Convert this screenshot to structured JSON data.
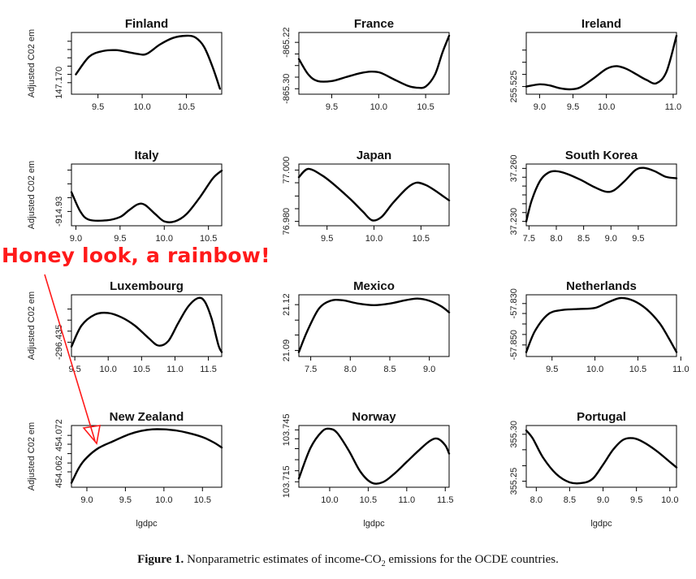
{
  "chart_data": [
    {
      "type": "line",
      "title": "Finland",
      "ylabel": "Adjusted C02 em",
      "xlabel": "",
      "xlim": [
        9.2,
        10.9
      ],
      "ylim": [
        0,
        1
      ],
      "x_ticks": [
        "9.5",
        "10.0",
        "10.5"
      ],
      "x_tick_values": [
        9.5,
        10.0,
        10.5
      ],
      "y_ticks": [
        "147.170"
      ],
      "y_tick_values": [
        0.15
      ],
      "y_minor_ticks": [
        0.3,
        0.45,
        0.6,
        0.75,
        0.9
      ],
      "x": [
        9.25,
        9.4,
        9.55,
        9.7,
        9.85,
        9.95,
        10.05,
        10.2,
        10.35,
        10.5,
        10.6,
        10.7,
        10.8,
        10.88
      ],
      "y": [
        0.3,
        0.62,
        0.72,
        0.74,
        0.7,
        0.67,
        0.67,
        0.84,
        0.96,
        1.0,
        0.97,
        0.8,
        0.42,
        0.04
      ]
    },
    {
      "type": "line",
      "title": "France",
      "ylabel": "",
      "xlabel": "",
      "xlim": [
        9.15,
        10.75
      ],
      "ylim": [
        0,
        1
      ],
      "x_ticks": [
        "9.5",
        "10.0",
        "10.5"
      ],
      "x_tick_values": [
        9.5,
        10.0,
        10.5
      ],
      "y_ticks": [
        "-865.30",
        "-865.22"
      ],
      "y_tick_values": [
        0.04,
        0.88
      ],
      "y_minor_ticks": [
        0.25,
        0.46,
        0.67
      ],
      "x": [
        9.15,
        9.25,
        9.35,
        9.5,
        9.65,
        9.8,
        9.92,
        10.02,
        10.15,
        10.3,
        10.4,
        10.5,
        10.6,
        10.68,
        10.75
      ],
      "y": [
        0.58,
        0.3,
        0.18,
        0.18,
        0.25,
        0.32,
        0.35,
        0.33,
        0.22,
        0.1,
        0.06,
        0.08,
        0.3,
        0.7,
        1.0
      ]
    },
    {
      "type": "line",
      "title": "Ireland",
      "ylabel": "",
      "xlabel": "",
      "xlim": [
        8.8,
        11.05
      ],
      "ylim": [
        0,
        1
      ],
      "x_ticks": [
        "9.0",
        "9.5",
        "10.0",
        "11.0"
      ],
      "x_tick_values": [
        9.0,
        9.5,
        10.0,
        11.0
      ],
      "y_ticks": [
        "255.525"
      ],
      "y_tick_values": [
        0.08
      ],
      "y_minor_ticks": [
        0.3,
        0.52,
        0.74
      ],
      "x": [
        8.8,
        9.0,
        9.15,
        9.3,
        9.45,
        9.6,
        9.8,
        10.0,
        10.15,
        10.3,
        10.45,
        10.6,
        10.75,
        10.9,
        11.05
      ],
      "y": [
        0.08,
        0.12,
        0.1,
        0.05,
        0.03,
        0.06,
        0.22,
        0.4,
        0.45,
        0.4,
        0.3,
        0.2,
        0.14,
        0.35,
        1.0
      ]
    },
    {
      "type": "line",
      "title": "Italy",
      "ylabel": "Adjusted C02 em",
      "xlabel": "",
      "xlim": [
        8.95,
        10.65
      ],
      "ylim": [
        0,
        1
      ],
      "x_ticks": [
        "9.0",
        "9.5",
        "10.0",
        "10.5"
      ],
      "x_tick_values": [
        9.0,
        9.5,
        10.0,
        10.5
      ],
      "y_ticks": [
        "-914.93"
      ],
      "y_tick_values": [
        0.2
      ],
      "y_minor_ticks": [
        0.45,
        0.7,
        0.95
      ],
      "x": [
        8.95,
        9.05,
        9.15,
        9.35,
        9.5,
        9.6,
        9.7,
        9.78,
        9.9,
        10.0,
        10.12,
        10.25,
        10.4,
        10.55,
        10.65
      ],
      "y": [
        0.55,
        0.2,
        0.05,
        0.04,
        0.1,
        0.22,
        0.33,
        0.32,
        0.15,
        0.02,
        0.02,
        0.15,
        0.45,
        0.8,
        0.94
      ]
    },
    {
      "type": "line",
      "title": "Japan",
      "ylabel": "",
      "xlabel": "",
      "xlim": [
        9.2,
        10.8
      ],
      "ylim": [
        0,
        1
      ],
      "x_ticks": [
        "9.5",
        "10.0",
        "10.5"
      ],
      "x_tick_values": [
        9.5,
        10.0,
        10.5
      ],
      "y_ticks": [
        "76.980",
        "77.000"
      ],
      "y_tick_values": [
        0.02,
        0.95
      ],
      "y_minor_ticks": [
        0.25,
        0.48,
        0.72
      ],
      "x": [
        9.2,
        9.3,
        9.45,
        9.6,
        9.75,
        9.88,
        9.98,
        10.08,
        10.2,
        10.35,
        10.45,
        10.55,
        10.65,
        10.75,
        10.8
      ],
      "y": [
        0.82,
        0.97,
        0.85,
        0.65,
        0.42,
        0.2,
        0.04,
        0.1,
        0.35,
        0.62,
        0.72,
        0.68,
        0.58,
        0.46,
        0.4
      ]
    },
    {
      "type": "line",
      "title": "South Korea",
      "ylabel": "",
      "xlabel": "",
      "xlim": [
        7.45,
        10.2
      ],
      "ylim": [
        0,
        1
      ],
      "x_ticks": [
        "7.5",
        "8.0",
        "8.5",
        "9.0",
        "9.5"
      ],
      "x_tick_values": [
        7.5,
        8.0,
        8.5,
        9.0,
        9.5
      ],
      "y_ticks": [
        "37.230",
        "37.260"
      ],
      "y_tick_values": [
        0.02,
        0.98
      ],
      "y_minor_ticks": [
        0.18,
        0.34,
        0.5,
        0.66,
        0.82
      ],
      "x": [
        7.45,
        7.55,
        7.7,
        7.85,
        8.0,
        8.2,
        8.45,
        8.7,
        8.9,
        9.05,
        9.25,
        9.45,
        9.6,
        9.8,
        10.0,
        10.2
      ],
      "y": [
        0.02,
        0.4,
        0.75,
        0.9,
        0.93,
        0.88,
        0.77,
        0.64,
        0.56,
        0.58,
        0.75,
        0.95,
        0.99,
        0.93,
        0.83,
        0.8
      ]
    },
    {
      "type": "line",
      "title": "Luxembourg",
      "ylabel": "Adjusted C02 em",
      "xlabel": "",
      "xlim": [
        9.45,
        11.7
      ],
      "ylim": [
        0,
        1
      ],
      "x_ticks": [
        "9.5",
        "10.0",
        "10.5",
        "11.0",
        "11.5"
      ],
      "x_tick_values": [
        9.5,
        10.0,
        10.5,
        11.0,
        11.5
      ],
      "y_ticks": [
        "-296.435"
      ],
      "y_tick_values": [
        0.2
      ],
      "y_minor_ticks": [
        0.4,
        0.6,
        0.8
      ],
      "x": [
        9.45,
        9.6,
        9.8,
        10.0,
        10.2,
        10.4,
        10.6,
        10.75,
        10.9,
        11.05,
        11.2,
        11.35,
        11.45,
        11.55,
        11.65,
        11.7
      ],
      "y": [
        0.12,
        0.5,
        0.7,
        0.73,
        0.65,
        0.5,
        0.28,
        0.14,
        0.22,
        0.55,
        0.85,
        1.0,
        0.93,
        0.62,
        0.15,
        0.02
      ]
    },
    {
      "type": "line",
      "title": "Mexico",
      "ylabel": "",
      "xlabel": "",
      "xlim": [
        7.35,
        9.25
      ],
      "ylim": [
        0,
        1
      ],
      "x_ticks": [
        "7.5",
        "8.0",
        "8.5",
        "9.0"
      ],
      "x_tick_values": [
        7.5,
        8.0,
        8.5,
        9.0
      ],
      "y_ticks": [
        "21.09",
        "21.12"
      ],
      "y_tick_values": [
        0.05,
        0.88
      ],
      "y_minor_ticks": [
        0.33,
        0.6
      ],
      "x": [
        7.35,
        7.45,
        7.6,
        7.75,
        7.9,
        8.1,
        8.3,
        8.5,
        8.7,
        8.85,
        9.0,
        9.15,
        9.25
      ],
      "y": [
        0.02,
        0.38,
        0.8,
        0.95,
        0.96,
        0.9,
        0.87,
        0.9,
        0.96,
        0.99,
        0.95,
        0.85,
        0.74
      ]
    },
    {
      "type": "line",
      "title": "Netherlands",
      "ylabel": "",
      "xlabel": "",
      "xlim": [
        9.2,
        10.95
      ],
      "ylim": [
        0,
        1
      ],
      "x_ticks": [
        "9.5",
        "10.0",
        "10.5",
        "11.0"
      ],
      "x_tick_values": [
        9.5,
        10.0,
        10.5,
        11.0
      ],
      "y_ticks": [
        "-57.850",
        "-57.830"
      ],
      "y_tick_values": [
        0.15,
        0.9
      ],
      "y_minor_ticks": [
        0.34,
        0.53,
        0.72
      ],
      "x": [
        9.2,
        9.3,
        9.45,
        9.6,
        9.8,
        10.0,
        10.15,
        10.3,
        10.45,
        10.6,
        10.75,
        10.85,
        10.95
      ],
      "y": [
        0.02,
        0.4,
        0.7,
        0.78,
        0.8,
        0.82,
        0.92,
        1.0,
        0.95,
        0.8,
        0.55,
        0.3,
        0.02
      ]
    },
    {
      "type": "line",
      "title": "New Zealand",
      "ylabel": "Adjusted C02 em",
      "xlabel": "lgdpc",
      "xlim": [
        8.8,
        10.75
      ],
      "ylim": [
        0,
        1
      ],
      "x_ticks": [
        "9.0",
        "9.5",
        "10.0",
        "10.5"
      ],
      "x_tick_values": [
        9.0,
        9.5,
        10.0,
        10.5
      ],
      "y_ticks": [
        "454.062",
        "454.072"
      ],
      "y_tick_values": [
        0.22,
        0.88
      ],
      "y_minor_ticks": [
        0.38,
        0.55,
        0.72
      ],
      "x": [
        8.8,
        8.9,
        9.0,
        9.15,
        9.35,
        9.55,
        9.7,
        9.85,
        10.0,
        10.15,
        10.3,
        10.5,
        10.65,
        10.75
      ],
      "y": [
        0.02,
        0.3,
        0.48,
        0.65,
        0.78,
        0.9,
        0.96,
        0.99,
        0.99,
        0.97,
        0.93,
        0.85,
        0.75,
        0.66
      ]
    },
    {
      "type": "line",
      "title": "Norway",
      "ylabel": "",
      "xlabel": "lgdpc",
      "xlim": [
        9.6,
        11.55
      ],
      "ylim": [
        0,
        1
      ],
      "x_ticks": [
        "10.0",
        "10.5",
        "11.0",
        "11.5"
      ],
      "x_tick_values": [
        10.0,
        10.5,
        11.0,
        11.5
      ],
      "y_ticks": [
        "103.715",
        "103.745"
      ],
      "y_tick_values": [
        0.04,
        0.98
      ],
      "y_minor_ticks": [
        0.24,
        0.44,
        0.64,
        0.82
      ],
      "x": [
        9.6,
        9.75,
        9.9,
        10.0,
        10.1,
        10.25,
        10.4,
        10.55,
        10.7,
        10.85,
        11.0,
        11.15,
        11.3,
        11.4,
        11.5,
        11.55
      ],
      "y": [
        0.1,
        0.65,
        0.95,
        1.0,
        0.92,
        0.6,
        0.22,
        0.02,
        0.04,
        0.2,
        0.4,
        0.6,
        0.78,
        0.82,
        0.7,
        0.55
      ]
    },
    {
      "type": "line",
      "title": "Portugal",
      "ylabel": "",
      "xlabel": "lgdpc",
      "xlim": [
        7.85,
        10.1
      ],
      "ylim": [
        0,
        1
      ],
      "x_ticks": [
        "8.0",
        "8.5",
        "9.0",
        "9.5",
        "10.0"
      ],
      "x_tick_values": [
        8.0,
        8.5,
        9.0,
        9.5,
        10.0
      ],
      "y_ticks": [
        "355.25",
        "355.30"
      ],
      "y_tick_values": [
        0.05,
        0.9
      ],
      "y_minor_ticks": [
        0.33,
        0.62
      ],
      "x": [
        7.85,
        7.95,
        8.1,
        8.3,
        8.5,
        8.7,
        8.85,
        9.0,
        9.15,
        9.3,
        9.45,
        9.6,
        9.8,
        10.0,
        10.1
      ],
      "y": [
        0.97,
        0.82,
        0.48,
        0.18,
        0.03,
        0.02,
        0.1,
        0.35,
        0.62,
        0.8,
        0.83,
        0.76,
        0.6,
        0.4,
        0.3
      ]
    }
  ],
  "overlay": {
    "text": "Honey look, a rainbow!",
    "color": "#ff1a1a"
  },
  "caption": {
    "label": "Figure 1.",
    "text_before": "Nonparametric estimates of income-CO",
    "subscript": "2",
    "text_after": " emissions for the OCDE countries."
  }
}
